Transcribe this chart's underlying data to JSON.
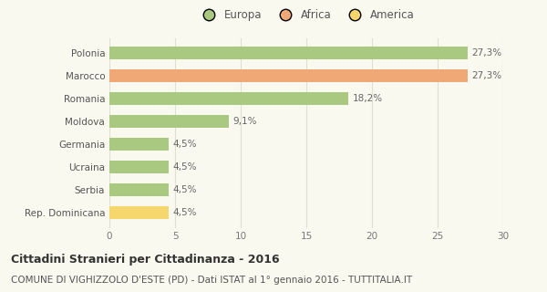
{
  "categories": [
    "Rep. Dominicana",
    "Serbia",
    "Ucraina",
    "Germania",
    "Moldova",
    "Romania",
    "Marocco",
    "Polonia"
  ],
  "values": [
    4.5,
    4.5,
    4.5,
    4.5,
    9.1,
    18.2,
    27.3,
    27.3
  ],
  "labels": [
    "4,5%",
    "4,5%",
    "4,5%",
    "4,5%",
    "9,1%",
    "18,2%",
    "27,3%",
    "27,3%"
  ],
  "colors": [
    "#f5d76e",
    "#a8c97f",
    "#a8c97f",
    "#a8c97f",
    "#a8c97f",
    "#a8c97f",
    "#f0a876",
    "#a8c97f"
  ],
  "legend_items": [
    {
      "label": "Europa",
      "color": "#a8c97f"
    },
    {
      "label": "Africa",
      "color": "#f0a876"
    },
    {
      "label": "America",
      "color": "#f5d76e"
    }
  ],
  "title": "Cittadini Stranieri per Cittadinanza - 2016",
  "subtitle": "COMUNE DI VIGHIZZOLO D'ESTE (PD) - Dati ISTAT al 1° gennaio 2016 - TUTTITALIA.IT",
  "xlim": [
    0,
    30
  ],
  "xticks": [
    0,
    5,
    10,
    15,
    20,
    25,
    30
  ],
  "background_color": "#f9f9f0",
  "grid_color": "#e0e0d0",
  "bar_height": 0.55,
  "title_fontsize": 9,
  "subtitle_fontsize": 7.5,
  "label_fontsize": 7.5,
  "tick_fontsize": 7.5,
  "legend_fontsize": 8.5
}
